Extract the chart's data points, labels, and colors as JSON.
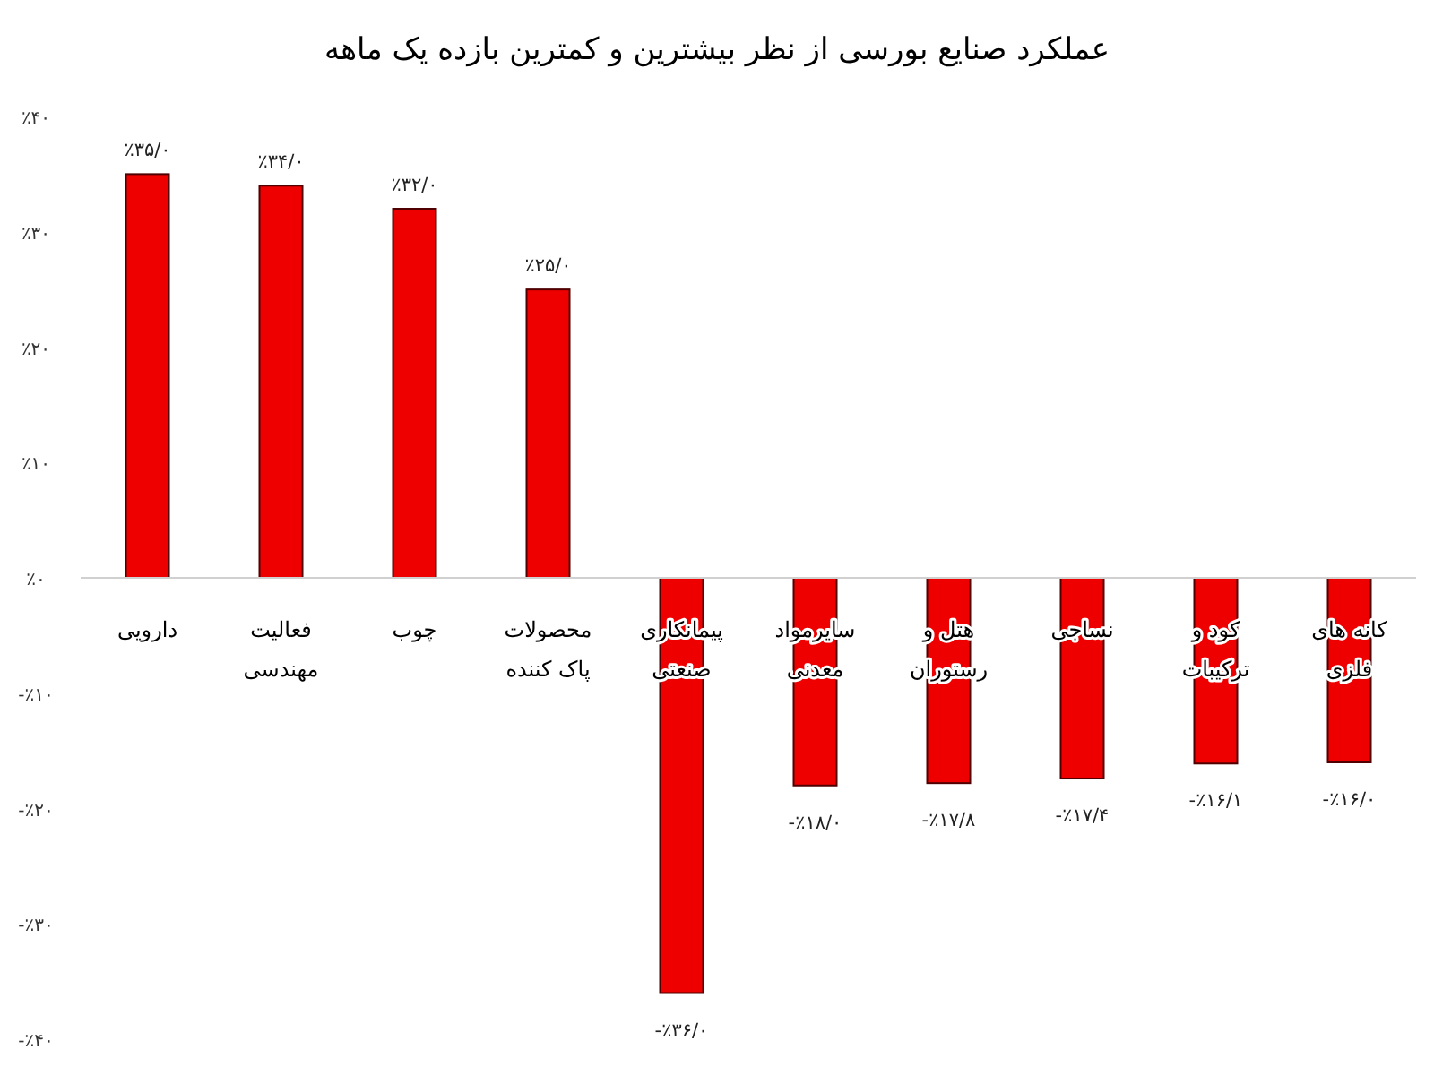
{
  "chart_data": {
    "type": "bar",
    "title": "عملکرد صنایع بورسی از نظر بیشترین و کمترین بازده یک ماهه",
    "categories": [
      "دارویی",
      "فعالیت مهندسی",
      "چوب",
      "محصولات پاک کننده",
      "پیمانکاری صنعتی",
      "سایرمواد معدنی",
      "هتل و رستوران",
      "نساجی",
      "کود و ترکیبات",
      "کانه های فلزی"
    ],
    "values": [
      35,
      34,
      32,
      25,
      -36,
      -18,
      -17.8,
      -17.4,
      -16.1,
      -16.0
    ],
    "value_labels": [
      "٪۳۵/۰",
      "٪۳۴/۰",
      "٪۳۲/۰",
      "٪۲۵/۰",
      "-٪۳۶/۰",
      "-٪۱۸/۰",
      "-٪۱۷/۸",
      "-٪۱۷/۴",
      "-٪۱۶/۱",
      "-٪۱۶/۰"
    ],
    "color": "#ee0000",
    "ylim": [
      -40,
      40
    ],
    "yticks": [
      {
        "value": -40,
        "label": "-٪۴۰"
      },
      {
        "value": -30,
        "label": "-٪۳۰"
      },
      {
        "value": -20,
        "label": "-٪۲۰"
      },
      {
        "value": -10,
        "label": "-٪۱۰"
      },
      {
        "value": 0,
        "label": "٪۰"
      },
      {
        "value": 10,
        "label": "٪۱۰"
      },
      {
        "value": 20,
        "label": "٪۲۰"
      },
      {
        "value": 30,
        "label": "٪۳۰"
      },
      {
        "value": 40,
        "label": "٪۴۰"
      }
    ],
    "grid": false
  }
}
